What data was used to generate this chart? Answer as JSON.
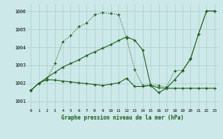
{
  "title": "Graphe pression niveau de la mer (hPa)",
  "xlabel_ticks": [
    0,
    1,
    2,
    3,
    4,
    5,
    6,
    7,
    8,
    9,
    10,
    11,
    12,
    13,
    14,
    15,
    16,
    17,
    18,
    19,
    20,
    21,
    22,
    23
  ],
  "ylim": [
    1000.6,
    1006.4
  ],
  "yticks": [
    1001,
    1002,
    1003,
    1004,
    1005,
    1006
  ],
  "bg_color": "#cce8e8",
  "line_color": "#1a5c1a",
  "grid_color": "#aacccc",
  "series1_x": [
    0,
    1,
    2,
    3,
    4,
    5,
    6,
    7,
    8,
    9,
    10,
    11,
    12,
    13,
    14,
    15,
    16,
    17,
    18,
    19,
    20,
    21,
    22,
    23
  ],
  "series1_y": [
    1001.6,
    1002.0,
    1002.2,
    1003.1,
    1004.3,
    1004.65,
    1005.15,
    1005.35,
    1005.82,
    1005.92,
    1005.88,
    1005.82,
    1004.5,
    1002.75,
    1001.88,
    1001.92,
    1001.88,
    1001.78,
    1002.7,
    1002.72,
    1003.4,
    1004.75,
    1006.02,
    1006.02
  ],
  "series2_x": [
    0,
    1,
    2,
    3,
    4,
    5,
    6,
    7,
    8,
    9,
    10,
    11,
    12,
    13,
    14,
    15,
    16,
    17,
    18,
    19,
    20,
    21,
    22,
    23
  ],
  "series2_y": [
    1001.6,
    1002.0,
    1002.2,
    1002.18,
    1002.12,
    1002.08,
    1002.02,
    1001.98,
    1001.93,
    1001.88,
    1001.95,
    1002.02,
    1002.28,
    1001.82,
    1001.82,
    1001.88,
    1001.48,
    1001.72,
    1001.72,
    1001.72,
    1001.72,
    1001.72,
    1001.72,
    1001.72
  ],
  "series3_x": [
    0,
    1,
    2,
    3,
    4,
    5,
    6,
    7,
    8,
    9,
    10,
    11,
    12,
    13,
    14,
    15,
    16,
    17,
    18,
    19,
    20,
    21,
    22,
    23
  ],
  "series3_y": [
    1001.6,
    1002.0,
    1002.3,
    1002.6,
    1002.9,
    1003.1,
    1003.3,
    1003.55,
    1003.75,
    1003.95,
    1004.15,
    1004.38,
    1004.58,
    1004.4,
    1003.85,
    1001.88,
    1001.75,
    1001.72,
    1002.2,
    1002.7,
    1003.35,
    1004.75,
    1006.02,
    1006.02
  ]
}
